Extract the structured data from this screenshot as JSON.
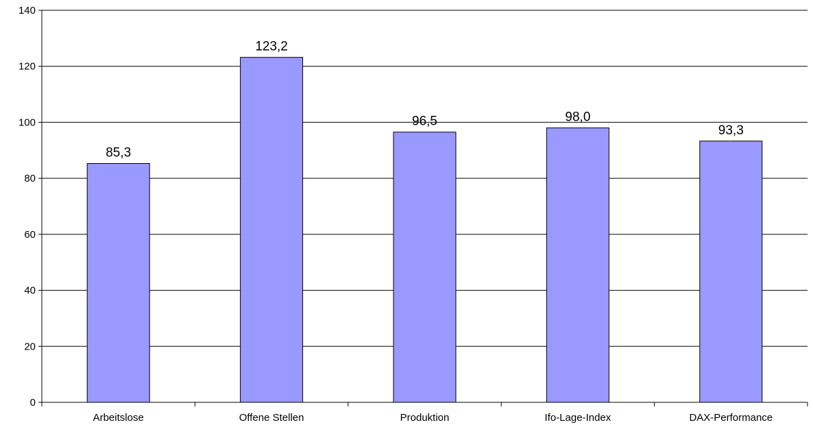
{
  "chart_data": {
    "type": "bar",
    "categories": [
      "Arbeitslose",
      "Offene Stellen",
      "Produktion",
      "Ifo-Lage-Index",
      "DAX-Performance"
    ],
    "values": [
      85.3,
      123.2,
      96.5,
      98.0,
      93.3
    ],
    "value_labels": [
      "85,3",
      "123,2",
      "96,5",
      "98,0",
      "93,3"
    ],
    "ylim": [
      0,
      140
    ],
    "yticks": [
      0,
      20,
      40,
      60,
      80,
      100,
      120,
      140
    ],
    "grid": true,
    "bar_color": "#9999ff",
    "bar_border": "#000000",
    "title": "",
    "xlabel": "",
    "ylabel": ""
  }
}
